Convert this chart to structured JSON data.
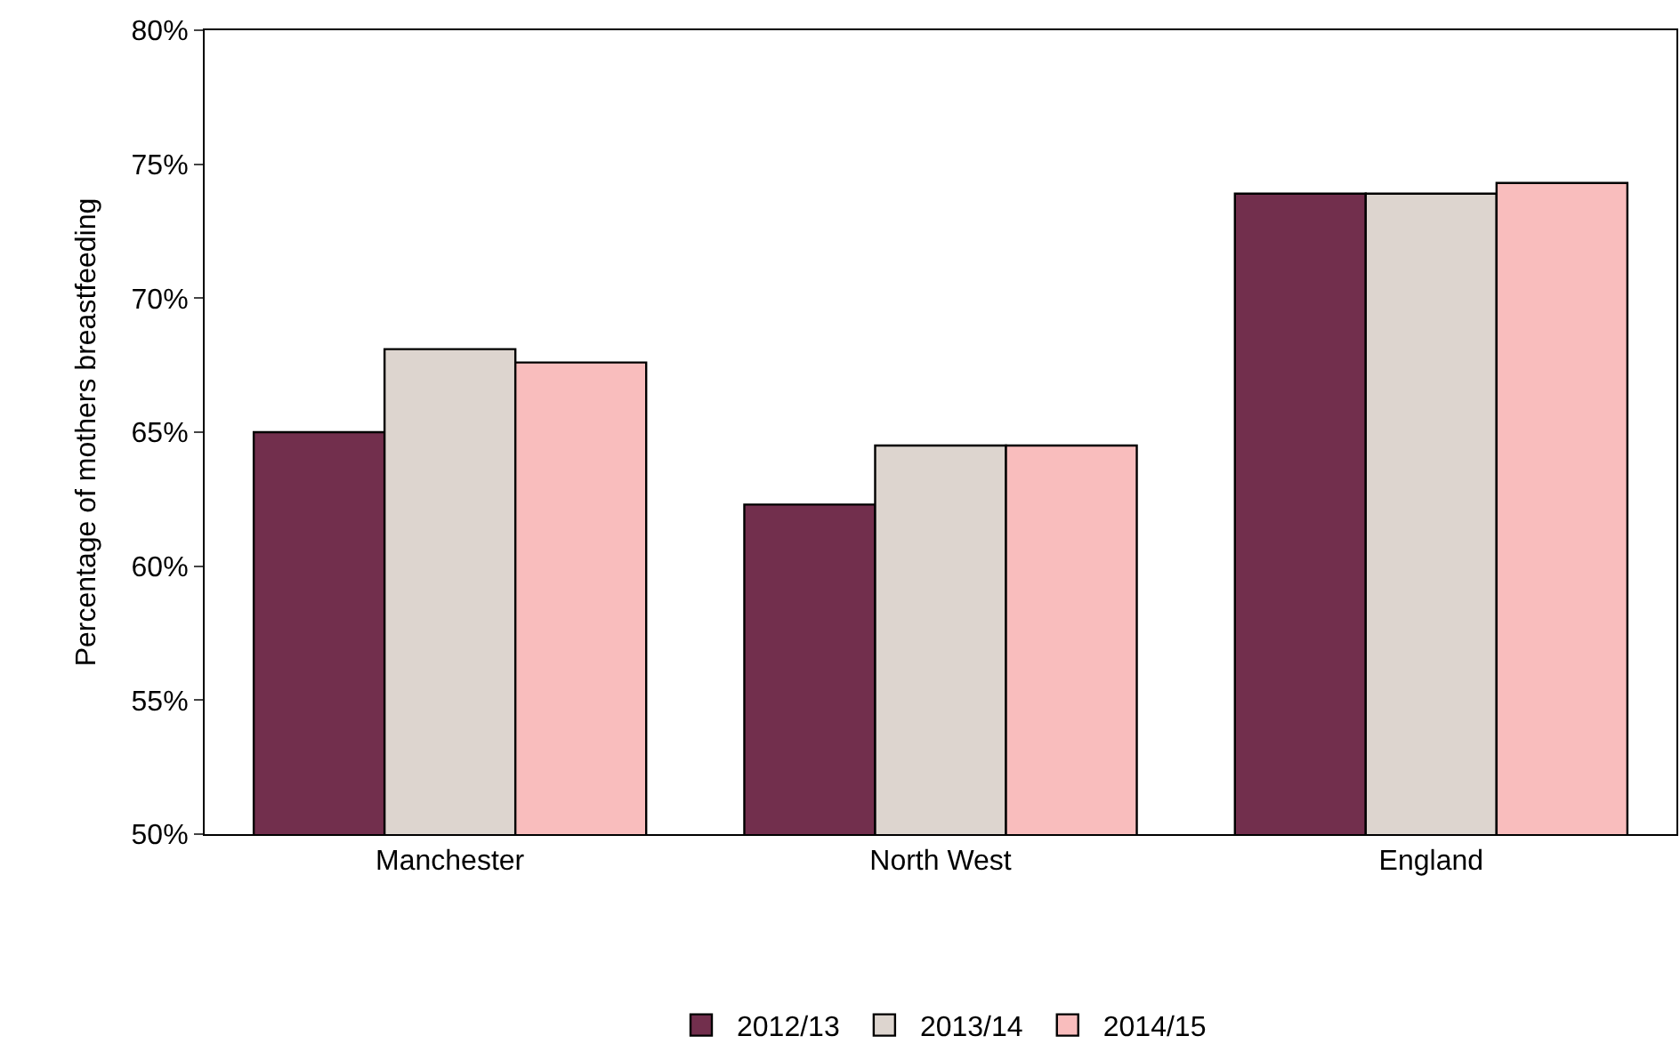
{
  "chart_data": {
    "type": "bar",
    "ylabel": "Percentage of mothers breastfeeding",
    "categories": [
      "Manchester",
      "North West",
      "England"
    ],
    "series": [
      {
        "name": "2012/13",
        "color": "#722f4d",
        "values": [
          65.0,
          62.3,
          73.9
        ]
      },
      {
        "name": "2013/14",
        "color": "#ddd5cf",
        "values": [
          68.1,
          64.5,
          73.9
        ]
      },
      {
        "name": "2014/15",
        "color": "#f9bdbd",
        "values": [
          67.6,
          64.5,
          74.3
        ]
      }
    ],
    "ylim": [
      50,
      80
    ],
    "yticks": [
      {
        "value": 50,
        "label": "50%"
      },
      {
        "value": 55,
        "label": "55%"
      },
      {
        "value": 60,
        "label": "60%"
      },
      {
        "value": 65,
        "label": "65%"
      },
      {
        "value": 70,
        "label": "70%"
      },
      {
        "value": 75,
        "label": "75%"
      },
      {
        "value": 80,
        "label": "80%"
      }
    ],
    "grid": false,
    "legend": "bottom"
  }
}
